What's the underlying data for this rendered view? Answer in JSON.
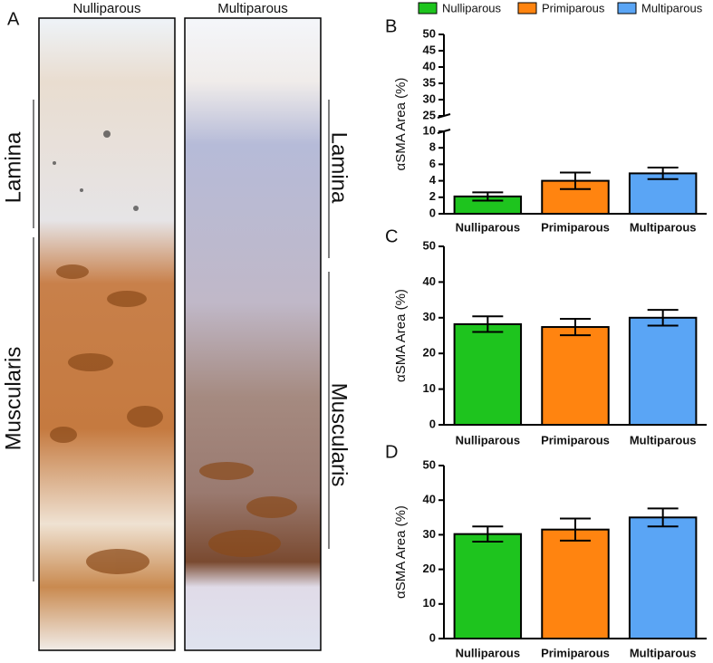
{
  "panel_a": {
    "label": "A",
    "images": [
      "Nulliparous",
      "Multiparous"
    ],
    "left_regions": [
      "Lamina",
      "Muscularis"
    ],
    "right_regions": [
      "Lamina",
      "Muscularis"
    ]
  },
  "chart_data": [
    {
      "type": "bar",
      "panel": "B",
      "ylabel": "αSMA Area (%)",
      "legend": [
        {
          "name": "Nulliparous",
          "color": "#1ec41e"
        },
        {
          "name": "Primiparous",
          "color": "#ff8410"
        },
        {
          "name": "Multiparous",
          "color": "#5aa5f5"
        }
      ],
      "categories": [
        "Nulliparous",
        "Primiparous",
        "Multiparous"
      ],
      "colors": [
        "#1ec41e",
        "#ff8410",
        "#5aa5f5"
      ],
      "values": [
        2.1,
        4.0,
        4.9
      ],
      "errors": [
        0.5,
        1.0,
        0.7
      ],
      "ylim": [
        0,
        10
      ],
      "yticks": [
        0,
        2,
        4,
        6,
        8,
        10
      ],
      "ylim_upper": [
        25,
        50
      ],
      "yticks_upper": [
        25,
        30,
        35,
        40,
        45,
        50
      ],
      "axis_break": true
    },
    {
      "type": "bar",
      "panel": "C",
      "ylabel": "αSMA Area (%)",
      "categories": [
        "Nulliparous",
        "Primiparous",
        "Multiparous"
      ],
      "colors": [
        "#1ec41e",
        "#ff8410",
        "#5aa5f5"
      ],
      "values": [
        28.2,
        27.4,
        30.0
      ],
      "errors": [
        2.2,
        2.3,
        2.2
      ],
      "ylim": [
        0,
        50
      ],
      "yticks": [
        0,
        10,
        20,
        30,
        40,
        50
      ]
    },
    {
      "type": "bar",
      "panel": "D",
      "ylabel": "αSMA Area (%)",
      "categories": [
        "Nulliparous",
        "Primiparous",
        "Multiparous"
      ],
      "colors": [
        "#1ec41e",
        "#ff8410",
        "#5aa5f5"
      ],
      "values": [
        30.2,
        31.5,
        35.0
      ],
      "errors": [
        2.2,
        3.2,
        2.6
      ],
      "ylim": [
        0,
        50
      ],
      "yticks": [
        0,
        10,
        20,
        30,
        40,
        50
      ]
    }
  ]
}
